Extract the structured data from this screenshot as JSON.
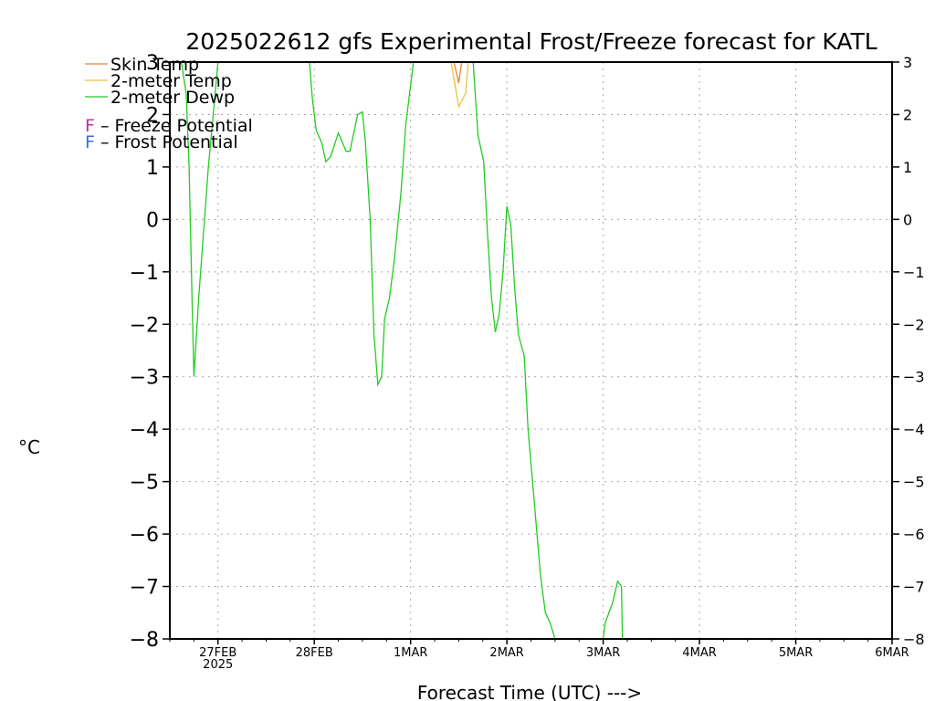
{
  "chart_data": {
    "type": "line",
    "title": "2025022612 gfs Experimental Frost/Freeze forecast for KATL",
    "ylabel": "°C",
    "xlabel": "Forecast Time (UTC) --->",
    "ylim": [
      -8,
      3
    ],
    "yticks": [
      3,
      2,
      1,
      0,
      -1,
      -2,
      -3,
      -4,
      -5,
      -6,
      -7,
      -8
    ],
    "ytick_labels": [
      "3",
      "2",
      "1",
      "0",
      "−1",
      "−2",
      "−3",
      "−4",
      "−5",
      "−6",
      "−7",
      "−8"
    ],
    "xlim_days": [
      -0.5,
      7.0
    ],
    "xticks": [
      {
        "label": "27FEB",
        "sub": "2025",
        "day": 0
      },
      {
        "label": "28FEB",
        "sub": "",
        "day": 1
      },
      {
        "label": "1MAR",
        "sub": "",
        "day": 2
      },
      {
        "label": "2MAR",
        "sub": "",
        "day": 3
      },
      {
        "label": "3MAR",
        "sub": "",
        "day": 4
      },
      {
        "label": "4MAR",
        "sub": "",
        "day": 5
      },
      {
        "label": "5MAR",
        "sub": "",
        "day": 6
      },
      {
        "label": "6MAR",
        "sub": "",
        "day": 7
      }
    ],
    "grid": true,
    "legend_position": "top-left",
    "legend": [
      {
        "name": "Skin Temp",
        "color": "#e8823a"
      },
      {
        "name": "2-meter Temp",
        "color": "#e8c33a"
      },
      {
        "name": "2-meter Dewp",
        "color": "#22cc22"
      }
    ],
    "potential_legend": [
      {
        "letter": "F",
        "text": " – Freeze Potential",
        "color": "#c0309a"
      },
      {
        "letter": "F",
        "text": " – Frost Potential",
        "color": "#4466e0"
      }
    ],
    "series": [
      {
        "name": "Skin Temp",
        "color": "#e8823a",
        "points": [
          [
            2.45,
            3.0
          ],
          [
            2.5,
            2.6
          ],
          [
            2.53,
            3.0
          ]
        ]
      },
      {
        "name": "2-meter Temp",
        "color": "#e8c33a",
        "points": [
          [
            2.42,
            3.0
          ],
          [
            2.5,
            2.15
          ],
          [
            2.57,
            2.4
          ],
          [
            2.6,
            3.0
          ]
        ]
      },
      {
        "name": "2-meter Dewp",
        "color": "#22cc22",
        "segments": [
          [
            [
              -0.38,
              3.0
            ],
            [
              -0.33,
              2.4
            ],
            [
              -0.3,
              1.0
            ],
            [
              -0.27,
              -1.5
            ],
            [
              -0.25,
              -3.0
            ],
            [
              -0.2,
              -1.5
            ],
            [
              -0.1,
              1.0
            ],
            [
              -0.05,
              2.0
            ],
            [
              0.0,
              3.0
            ]
          ],
          [
            [
              0.95,
              3.0
            ],
            [
              0.98,
              2.3
            ],
            [
              1.02,
              1.7
            ],
            [
              1.08,
              1.45
            ],
            [
              1.12,
              1.1
            ],
            [
              1.17,
              1.2
            ],
            [
              1.25,
              1.65
            ],
            [
              1.33,
              1.3
            ],
            [
              1.37,
              1.3
            ],
            [
              1.45,
              2.0
            ],
            [
              1.5,
              2.05
            ],
            [
              1.53,
              1.5
            ],
            [
              1.58,
              0.0
            ],
            [
              1.62,
              -2.2
            ],
            [
              1.66,
              -3.15
            ],
            [
              1.7,
              -3.0
            ],
            [
              1.73,
              -1.9
            ],
            [
              1.78,
              -1.5
            ],
            [
              1.83,
              -0.8
            ],
            [
              1.9,
              0.5
            ],
            [
              1.95,
              1.8
            ],
            [
              2.03,
              3.0
            ]
          ],
          [
            [
              2.65,
              3.0
            ],
            [
              2.7,
              1.6
            ],
            [
              2.76,
              1.1
            ],
            [
              2.8,
              -0.3
            ],
            [
              2.84,
              -1.5
            ],
            [
              2.88,
              -2.15
            ],
            [
              2.92,
              -1.8
            ],
            [
              2.96,
              -1.0
            ],
            [
              3.0,
              0.25
            ],
            [
              3.04,
              -0.1
            ],
            [
              3.08,
              -1.3
            ],
            [
              3.12,
              -2.2
            ],
            [
              3.18,
              -2.6
            ],
            [
              3.22,
              -4.0
            ],
            [
              3.28,
              -5.3
            ],
            [
              3.35,
              -6.8
            ],
            [
              3.4,
              -7.5
            ],
            [
              3.45,
              -7.7
            ],
            [
              3.5,
              -8.0
            ]
          ],
          [
            [
              4.0,
              -8.0
            ],
            [
              4.02,
              -7.7
            ],
            [
              4.1,
              -7.3
            ],
            [
              4.15,
              -6.9
            ],
            [
              4.19,
              -7.0
            ],
            [
              4.2,
              -8.0
            ]
          ]
        ]
      }
    ]
  }
}
